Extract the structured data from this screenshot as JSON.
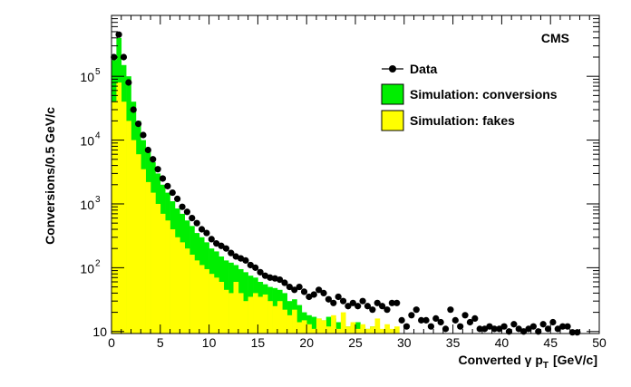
{
  "chart_data": {
    "type": "bar",
    "log_y": true,
    "bin_width": 0.5,
    "xlim": [
      0,
      50
    ],
    "ylim": [
      9.3,
      900000
    ],
    "x_ticks": [
      0,
      5,
      10,
      15,
      20,
      25,
      30,
      35,
      40,
      45,
      50
    ],
    "y_ticks": [
      {
        "value": 10,
        "base": "10",
        "exp": ""
      },
      {
        "value": 100,
        "base": "10",
        "exp": "2"
      },
      {
        "value": 1000,
        "base": "10",
        "exp": "3"
      },
      {
        "value": 10000,
        "base": "10",
        "exp": "4"
      },
      {
        "value": 100000,
        "base": "10",
        "exp": "5"
      }
    ],
    "xlabel": {
      "main": "Converted γ p",
      "sub": "T",
      "unit": "[GeV/c]"
    },
    "ylabel": "Conversions/0.5 GeV/c",
    "annotation": "CMS",
    "legend_position": "top-right",
    "colors": {
      "data": "#000000",
      "conversions": "#00ee00",
      "fakes": "#ffff00"
    },
    "series": [
      {
        "name": "Data",
        "kind": "points",
        "x": [
          0.25,
          0.75,
          1.25,
          1.75,
          2.25,
          2.75,
          3.25,
          3.75,
          4.25,
          4.75,
          5.25,
          5.75,
          6.25,
          6.75,
          7.25,
          7.75,
          8.25,
          8.75,
          9.25,
          9.75,
          10.25,
          10.75,
          11.25,
          11.75,
          12.25,
          12.75,
          13.25,
          13.75,
          14.25,
          14.75,
          15.25,
          15.75,
          16.25,
          16.75,
          17.25,
          17.75,
          18.25,
          18.75,
          19.25,
          19.75,
          20.25,
          20.75,
          21.25,
          21.75,
          22.25,
          22.75,
          23.25,
          23.75,
          24.25,
          24.75,
          25.25,
          25.75,
          26.25,
          26.75,
          27.25,
          27.75,
          28.25,
          28.75,
          29.25,
          29.75,
          30.25,
          30.75,
          31.25,
          31.75,
          32.25,
          32.75,
          33.25,
          33.75,
          34.25,
          34.75,
          35.25,
          35.75,
          36.25,
          36.75,
          37.25,
          37.75,
          38.25,
          38.75,
          39.25,
          39.75,
          40.25,
          40.75,
          41.25,
          41.75,
          42.25,
          42.75,
          43.25,
          43.75,
          44.25,
          44.75,
          45.25,
          45.75,
          46.25,
          46.75,
          47.25,
          47.75
        ],
        "y": [
          200000,
          450000,
          200000,
          80000,
          30000,
          18000,
          12000,
          7000,
          5000,
          3500,
          2500,
          1900,
          1500,
          1200,
          900,
          750,
          600,
          500,
          400,
          350,
          280,
          240,
          220,
          200,
          170,
          150,
          140,
          130,
          110,
          100,
          85,
          75,
          70,
          68,
          65,
          58,
          50,
          45,
          50,
          42,
          35,
          38,
          45,
          40,
          32,
          28,
          35,
          30,
          25,
          28,
          25,
          30,
          25,
          22,
          28,
          25,
          22,
          28,
          28,
          15,
          12,
          18,
          22,
          15,
          15,
          12,
          16,
          14,
          11,
          22,
          15,
          12,
          18,
          14,
          16,
          11,
          11,
          12,
          11,
          11,
          12,
          10,
          13,
          11,
          10,
          11,
          12,
          10,
          13,
          11,
          14,
          11,
          12,
          12,
          9.7,
          9.7
        ]
      },
      {
        "name": "Simulation: conversions",
        "kind": "stack-total",
        "values": [
          180000,
          400000,
          150000,
          100000,
          40000,
          20000,
          10000,
          7000,
          4500,
          3000,
          2000,
          1500,
          1100,
          850,
          700,
          550,
          450,
          350,
          300,
          250,
          200,
          180,
          150,
          130,
          120,
          110,
          95,
          85,
          75,
          70,
          60,
          55,
          50,
          48,
          45,
          40,
          30,
          32,
          26,
          20,
          18,
          17,
          16,
          15,
          17,
          16,
          14,
          13,
          12,
          13,
          14,
          12,
          11,
          12,
          11,
          10,
          9,
          9,
          9,
          9,
          9,
          9,
          9,
          9,
          9,
          9,
          9,
          9,
          9,
          9,
          9,
          9,
          9,
          9,
          9,
          9,
          9,
          9,
          9,
          9,
          9,
          9,
          9,
          9,
          9,
          9,
          9,
          9,
          9,
          9,
          9,
          9,
          9,
          9,
          9,
          9
        ]
      },
      {
        "name": "Simulation: fakes",
        "kind": "stack-part",
        "values": [
          40000,
          80000,
          40000,
          20000,
          10000,
          6000,
          3500,
          2200,
          1500,
          1000,
          700,
          550,
          400,
          300,
          250,
          200,
          160,
          130,
          110,
          95,
          80,
          70,
          60,
          45,
          40,
          60,
          40,
          30,
          35,
          40,
          35,
          38,
          30,
          25,
          30,
          22,
          18,
          22,
          14,
          15,
          13,
          11,
          16,
          15,
          12,
          18,
          11,
          20,
          12,
          14,
          11,
          13,
          11,
          12,
          16,
          11,
          13,
          11,
          12,
          9,
          9,
          9,
          9,
          9,
          9,
          9,
          9,
          9,
          9,
          9,
          9,
          9,
          9,
          9,
          9,
          9,
          9,
          9,
          9,
          9,
          9,
          9,
          9,
          9,
          9,
          9,
          9,
          9,
          9,
          9,
          9,
          9,
          9,
          9,
          9,
          9
        ]
      }
    ]
  }
}
